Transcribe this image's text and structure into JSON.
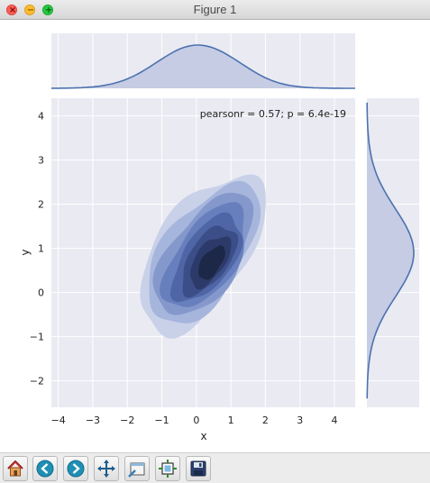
{
  "window": {
    "title": "Figure 1"
  },
  "window_controls": {
    "close": "×",
    "minimize": "−",
    "maximize": "+"
  },
  "colors": {
    "axes_bg": "#eaeaf2",
    "line": "#4c72b0",
    "fill": "#c5cce3",
    "text": "#222222"
  },
  "chart_data": {
    "type": "joint-kde",
    "xlabel": "x",
    "ylabel": "y",
    "xlim": [
      -4.2,
      4.6
    ],
    "ylim": [
      -2.6,
      4.4
    ],
    "x_ticks": [
      -4,
      -3,
      -2,
      -1,
      0,
      1,
      2,
      3,
      4
    ],
    "x_tick_labels": [
      "−4",
      "−3",
      "−2",
      "−1",
      "0",
      "1",
      "2",
      "3",
      "4"
    ],
    "y_ticks": [
      -2,
      -1,
      0,
      1,
      2,
      3,
      4
    ],
    "y_tick_labels": [
      "−2",
      "−1",
      "0",
      "1",
      "2",
      "3",
      "4"
    ],
    "annotation": "pearsonr = 0.57; p = 6.4e-19",
    "kde_center": {
      "x": 0.15,
      "y": 0.9
    },
    "kde_levels": 8,
    "marginal_x_peak": 0.0,
    "marginal_y_peak": 0.9,
    "grid": true
  },
  "toolbar": [
    {
      "name": "home-button",
      "icon": "home-icon"
    },
    {
      "name": "back-button",
      "icon": "back-arrow-icon"
    },
    {
      "name": "forward-button",
      "icon": "forward-arrow-icon"
    },
    {
      "name": "pan-button",
      "icon": "pan-icon"
    },
    {
      "name": "zoom-button",
      "icon": "zoom-rect-icon"
    },
    {
      "name": "subplots-button",
      "icon": "subplots-icon"
    },
    {
      "name": "save-button",
      "icon": "save-icon"
    }
  ]
}
